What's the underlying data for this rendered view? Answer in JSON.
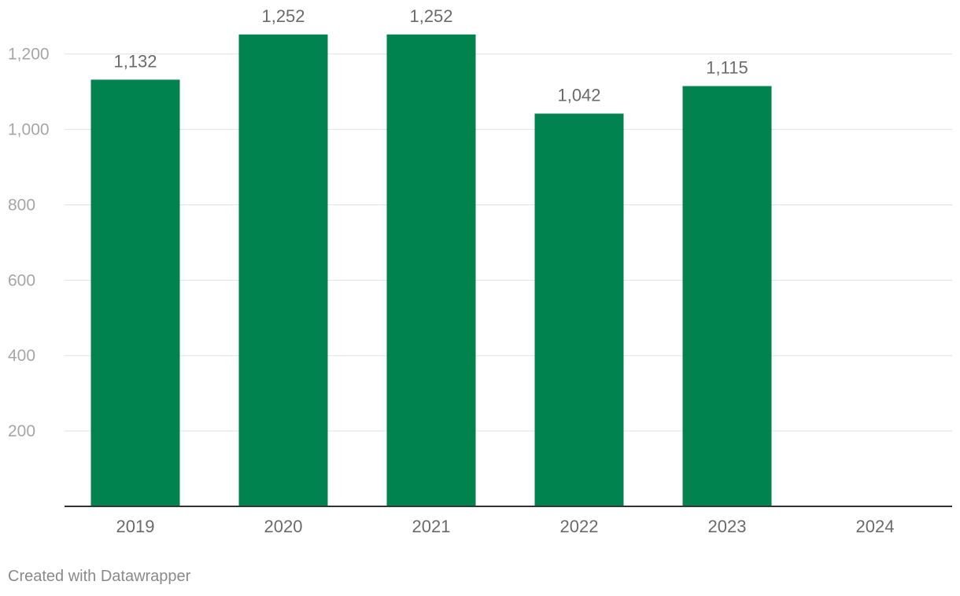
{
  "chart_data": {
    "type": "bar",
    "categories": [
      "2019",
      "2020",
      "2021",
      "2022",
      "2023",
      "2024"
    ],
    "values": [
      1132,
      1252,
      1252,
      1042,
      1115,
      null
    ],
    "value_labels": [
      "1,132",
      "1,252",
      "1,252",
      "1,042",
      "1,115",
      ""
    ],
    "yticks": [
      200,
      400,
      600,
      800,
      1000,
      1200
    ],
    "ytick_labels": [
      "200",
      "400",
      "600",
      "800",
      "1,000",
      "1,200"
    ],
    "ylim": [
      0,
      1310
    ],
    "grid": true,
    "bar_color": "#00834f"
  },
  "footer": {
    "credit": "Created with Datawrapper"
  }
}
